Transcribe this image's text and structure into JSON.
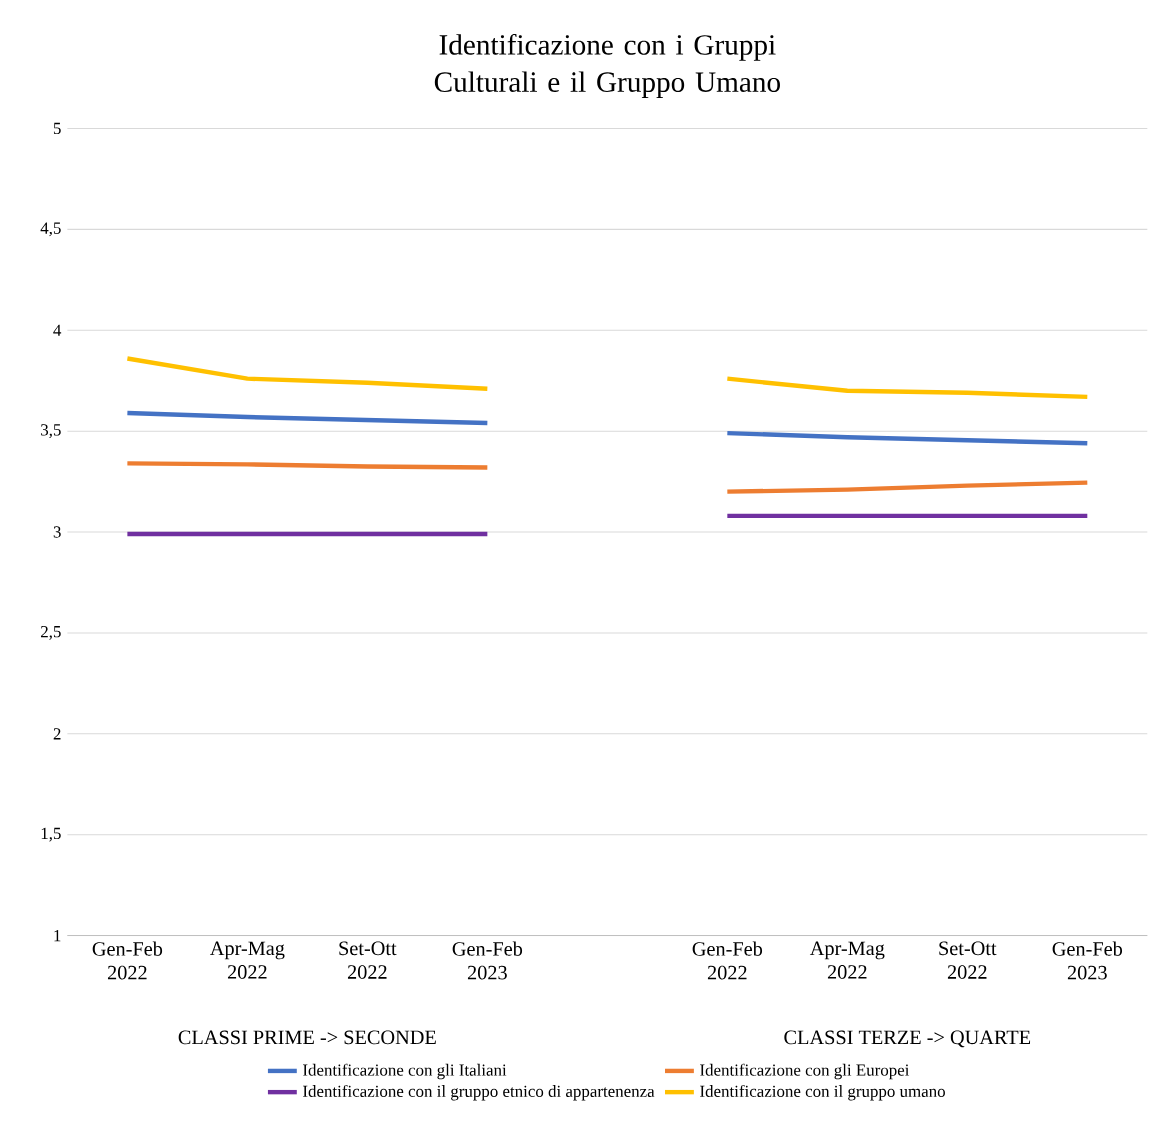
{
  "chart_data": {
    "type": "line",
    "title": "Identificazione con i Gruppi Culturali e il Gruppo Umano",
    "categories": [
      "Gen-Feb 2022",
      "Apr-Mag 2022",
      "Set-Ott 2022",
      "Gen-Feb 2023",
      null,
      "Gen-Feb 2022",
      "Apr-Mag 2022",
      "Set-Ott 2022",
      "Gen-Feb 2023"
    ],
    "series": [
      {
        "name": "Identificazione con gli Italiani",
        "color": "#4472c4",
        "values": [
          3.59,
          3.57,
          3.555,
          3.54,
          null,
          3.49,
          3.47,
          3.455,
          3.44
        ]
      },
      {
        "name": "Identificazione con gli Europei",
        "color": "#ed7d31",
        "values": [
          3.34,
          3.335,
          3.325,
          3.32,
          null,
          3.2,
          3.21,
          3.23,
          3.245
        ]
      },
      {
        "name": "Identificazione con il gruppo etnico di appartenenza",
        "color": "#7030a0",
        "values": [
          2.99,
          2.99,
          2.99,
          2.99,
          null,
          3.08,
          3.08,
          3.08,
          3.08
        ]
      },
      {
        "name": "Identificazione con il gruppo umano",
        "color": "#ffc000",
        "values": [
          3.86,
          3.76,
          3.74,
          3.71,
          null,
          3.76,
          3.7,
          3.69,
          3.67
        ]
      }
    ],
    "ylim": [
      1,
      5
    ],
    "yticks": [
      1,
      {
        "value": 1.5,
        "label": "1,5"
      },
      2,
      {
        "value": 2.5,
        "label": "2,5"
      },
      3,
      {
        "value": 3.5,
        "label": "3,5"
      },
      4,
      {
        "value": 4.5,
        "label": "4,5"
      },
      5
    ],
    "annotations": [
      "CLASSI PRIME -> SECONDE",
      "CLASSI TERZE -> QUARTE"
    ],
    "grid": "y",
    "legend": "bottom",
    "marker": "none",
    "line_style": "solid"
  }
}
